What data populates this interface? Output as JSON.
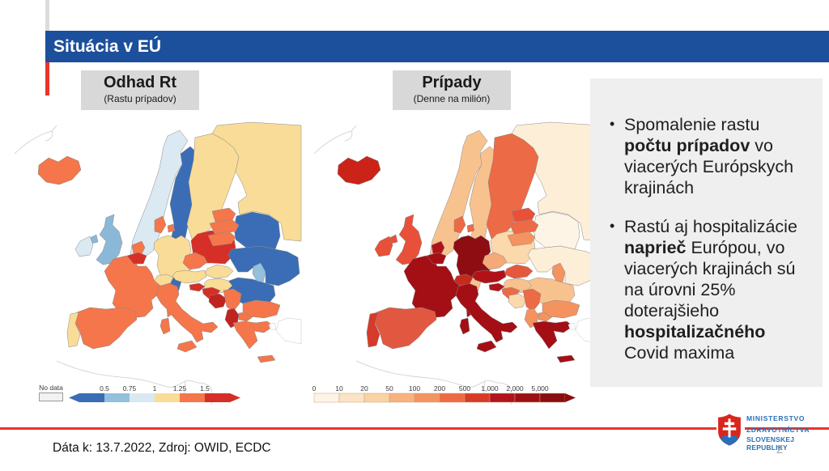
{
  "slide": {
    "title": "Situácia v EÚ"
  },
  "map_panels": [
    {
      "id": "rt",
      "title": "Odhad Rt",
      "subtitle": "(Rastu prípadov)",
      "legend": {
        "no_data_label": "No data",
        "ticks": [
          "0.5",
          "0.75",
          "1",
          "1.25",
          "1.5"
        ],
        "colors": [
          "#3a6db5",
          "#92c0dd",
          "#d9e9f2",
          "#f9dc97",
          "#f4764a",
          "#d62f27"
        ],
        "left_arrow": true,
        "ticks_at_boundaries": true
      },
      "fills": {
        "IS": "#f4764a",
        "NO": "#dbe9f2",
        "SE": "#3a6db5",
        "FI": "#f9dc97",
        "RU": "#f9dc97",
        "EE": "#f4764a",
        "LV": "#f4764a",
        "LT": "#f4764a",
        "BY": "#3a6db5",
        "UA": "#3a6db5",
        "MD": "#92c0dd",
        "PL": "#d62f27",
        "DE": "#f9dc97",
        "CZ": "#f4764a",
        "SK": "#f9dc97",
        "AT": "#f9dc97",
        "CH": "#f9dc97",
        "HU": "#f9dc97",
        "FR": "#f4764a",
        "CO": "#f4764a",
        "NL": "#f4764a",
        "BE": "#d62f27",
        "DK": "#f4764a",
        "DKI": "#f4764a",
        "UK": "#8cb8d8",
        "NI": "#8cb8d8",
        "IE": "#dbe9f2",
        "ES": "#f4764a",
        "PT": "#f9dc97",
        "IT": "#f4764a",
        "SA": "#f4764a",
        "SC": "#f4764a",
        "SI": "#d62f27",
        "HR": "#d62f27",
        "BA": "#c0241f",
        "RS": "#f4764a",
        "ME": "#c0241f",
        "MK": "#f4764a",
        "BG": "#f4764a",
        "GR": "#f4764a",
        "CR": "#f4764a",
        "RO": "#3a6db5"
      }
    },
    {
      "id": "cases",
      "title": "Prípady",
      "subtitle": "(Denne na milión)",
      "legend": {
        "ticks": [
          "0",
          "10",
          "20",
          "50",
          "100",
          "200",
          "500",
          "1,000",
          "2,000",
          "5,000"
        ],
        "colors": [
          "#fdf4e6",
          "#fbe3c5",
          "#f9d3a4",
          "#f7b27e",
          "#f3945f",
          "#ee6a45",
          "#da3a28",
          "#b31419",
          "#9d0f14",
          "#8a0d11"
        ],
        "left_arrow": false,
        "ticks_at_boundaries": false
      },
      "fills": {
        "IS": "#cb2318",
        "NO": "#f8c28e",
        "SE": "#f8c28e",
        "FI": "#ec6a45",
        "RU": "#fdeed8",
        "EE": "#e8503a",
        "LV": "#ec6a45",
        "LT": "#f4935f",
        "BY": "#fdf4e6",
        "UA": "#fdeed8",
        "MD": "#f4935f",
        "PL": "#fbd9ac",
        "DE": "#8e0d12",
        "CZ": "#f5a878",
        "SK": "#e4593e",
        "AT": "#b01217",
        "CH": "#c62a1d",
        "HU": "#f8c28e",
        "FR": "#a30f15",
        "CO": "#a30f15",
        "NL": "#b01217",
        "BE": "#a30f15",
        "DK": "#ec6a45",
        "DKI": "#ec6a45",
        "UK": "#e8503a",
        "NI": "#e8503a",
        "IE": "#e8503a",
        "ES": "#e25740",
        "PT": "#d63a2a",
        "IT": "#a30f15",
        "SA": "#a30f15",
        "SC": "#a30f15",
        "SI": "#b01217",
        "HR": "#ec6a45",
        "BA": "#fbd9ac",
        "RS": "#ec6a45",
        "ME": "#f4935f",
        "MK": "#f4935f",
        "BG": "#f4935f",
        "GR": "#a30f15",
        "CR": "#a30f15",
        "RO": "#f8c28e"
      }
    }
  ],
  "bullets": [
    [
      {
        "t": "Spomalenie rastu ",
        "b": false
      },
      {
        "t": "počtu prípadov",
        "b": true
      },
      {
        "t": " vo viacerých Európskych krajinách",
        "b": false
      }
    ],
    [
      {
        "t": "Rastú aj hospitalizácie ",
        "b": false
      },
      {
        "t": "naprieč",
        "b": true
      },
      {
        "t": " Európou, vo viacerých krajinách sú na úrovni 25% doterajšieho ",
        "b": false
      },
      {
        "t": "hospitalizačného",
        "b": true
      },
      {
        "t": " Covid maxima",
        "b": false
      }
    ]
  ],
  "footer": {
    "source": "Dáta k: 13.7.2022, Zdroj: OWID, ECDC",
    "page_number": "2",
    "logo": {
      "line1": "MINISTERSTVO",
      "line2": "ZDRAVOTNÍCTVA",
      "line3": "SLOVENSKEJ REPUBLIKY"
    }
  },
  "accent_colors": {
    "header_blue": "#1c4f9c",
    "accent_red": "#e8352b",
    "box_gray": "#d8d8d8",
    "panel_gray": "#efefef"
  }
}
